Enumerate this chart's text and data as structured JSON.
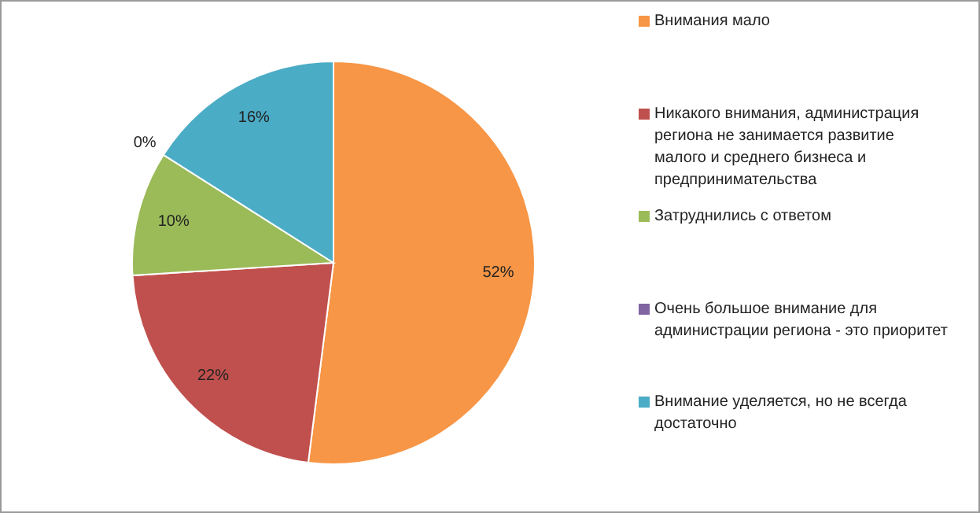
{
  "chart_data": {
    "type": "pie",
    "categories": [
      "Внимания мало",
      "Никакого внимания, администрация региона не занимается развитие малого и среднего бизнеса и предпринимательства",
      "Затруднились с ответом",
      "Очень большое внимание для администрации региона - это приоритет",
      "Внимание уделяется, но не всегда достаточно"
    ],
    "values": [
      52,
      22,
      10,
      0,
      16
    ],
    "colors": [
      "#f79646",
      "#c0504d",
      "#9bbb59",
      "#8064a2",
      "#4bacc6"
    ],
    "value_labels": [
      "52%",
      "22%",
      "10%",
      "0%",
      "16%"
    ],
    "legend": "right"
  }
}
